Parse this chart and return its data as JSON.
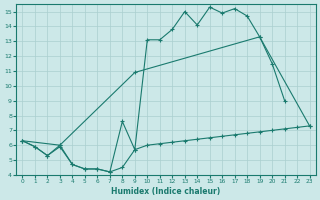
{
  "line1_x": [
    0,
    1,
    2,
    3,
    4,
    5,
    6,
    7,
    8,
    9,
    10,
    11,
    12,
    13,
    14,
    15,
    16,
    17,
    18,
    19,
    20,
    21
  ],
  "line1_y": [
    6.3,
    5.9,
    5.3,
    6.0,
    4.7,
    4.4,
    4.4,
    4.2,
    7.6,
    5.7,
    13.1,
    13.1,
    13.8,
    15.0,
    14.1,
    15.3,
    14.9,
    15.2,
    14.7,
    13.3,
    11.5,
    9.0
  ],
  "line2_x": [
    0,
    3,
    9,
    19,
    23
  ],
  "line2_y": [
    6.3,
    6.0,
    10.9,
    13.3,
    7.3
  ],
  "line3_x": [
    0,
    1,
    2,
    3,
    4,
    5,
    6,
    7,
    8,
    9,
    10,
    11,
    12,
    13,
    14,
    15,
    16,
    17,
    18,
    19,
    20,
    21,
    22,
    23
  ],
  "line3_y": [
    6.3,
    5.9,
    5.3,
    5.9,
    4.7,
    4.4,
    4.4,
    4.2,
    4.5,
    5.7,
    6.0,
    6.1,
    6.2,
    6.3,
    6.4,
    6.5,
    6.6,
    6.7,
    6.8,
    6.9,
    7.0,
    7.1,
    7.2,
    7.3
  ],
  "color": "#1a7a6e",
  "bg_color": "#cce8e8",
  "grid_color": "#aacfcf",
  "xlabel": "Humidex (Indice chaleur)",
  "ylim": [
    4,
    15.5
  ],
  "xlim": [
    -0.5,
    23.5
  ],
  "yticks": [
    4,
    5,
    6,
    7,
    8,
    9,
    10,
    11,
    12,
    13,
    14,
    15
  ],
  "xticks": [
    0,
    1,
    2,
    3,
    4,
    5,
    6,
    7,
    8,
    9,
    10,
    11,
    12,
    13,
    14,
    15,
    16,
    17,
    18,
    19,
    20,
    21,
    22,
    23
  ]
}
